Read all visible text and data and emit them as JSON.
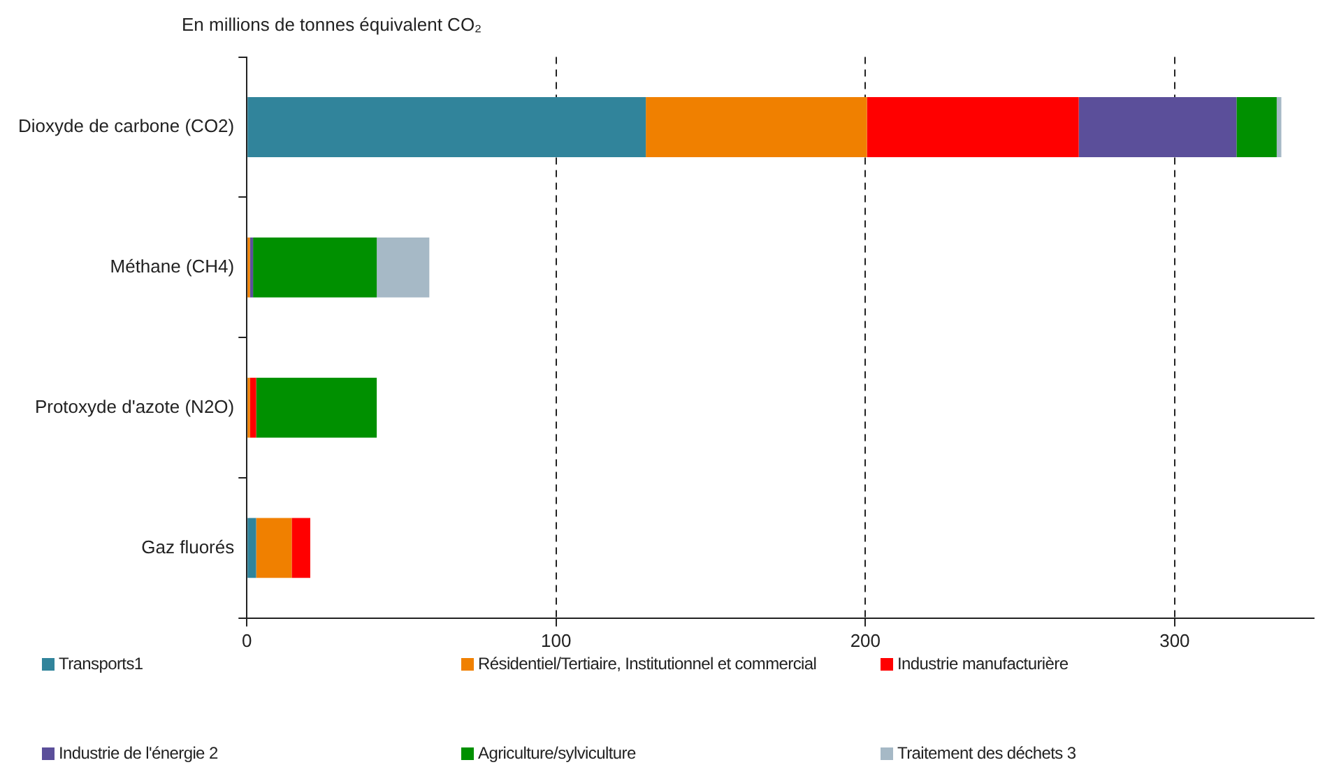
{
  "chart_data": {
    "type": "bar",
    "orientation": "horizontal",
    "stacked": true,
    "title": "En millions de tonnes équivalent CO₂",
    "categories": [
      "Dioxyde de carbone (CO2)",
      "Méthane (CH4)",
      "Protoxyde d'azote (N2O)",
      "Gaz fluorés"
    ],
    "series": [
      {
        "name": "Transports1",
        "color": "#31849b",
        "values": [
          129,
          0,
          0,
          3
        ]
      },
      {
        "name": "Résidentiel/Tertiaire, Institutionnel et commercial",
        "color": "#f08000",
        "values": [
          71.5,
          1,
          1,
          11.5
        ]
      },
      {
        "name": "Industrie manufacturière",
        "color": "#ff0000",
        "values": [
          68.5,
          0,
          2,
          6
        ]
      },
      {
        "name": "Industrie de l'énergie 2",
        "color": "#5b4f9a",
        "values": [
          51,
          1,
          0,
          0
        ]
      },
      {
        "name": "Agriculture/sylviculture",
        "color": "#009000",
        "values": [
          13,
          40,
          39,
          0
        ]
      },
      {
        "name": "Traitement des déchets 3",
        "color": "#a6b9c6",
        "values": [
          1.5,
          17,
          0,
          0
        ]
      }
    ],
    "xlim": [
      0,
      345
    ],
    "xticks": [
      0,
      100,
      200,
      300
    ],
    "grid": "x",
    "legend": "bottom"
  }
}
